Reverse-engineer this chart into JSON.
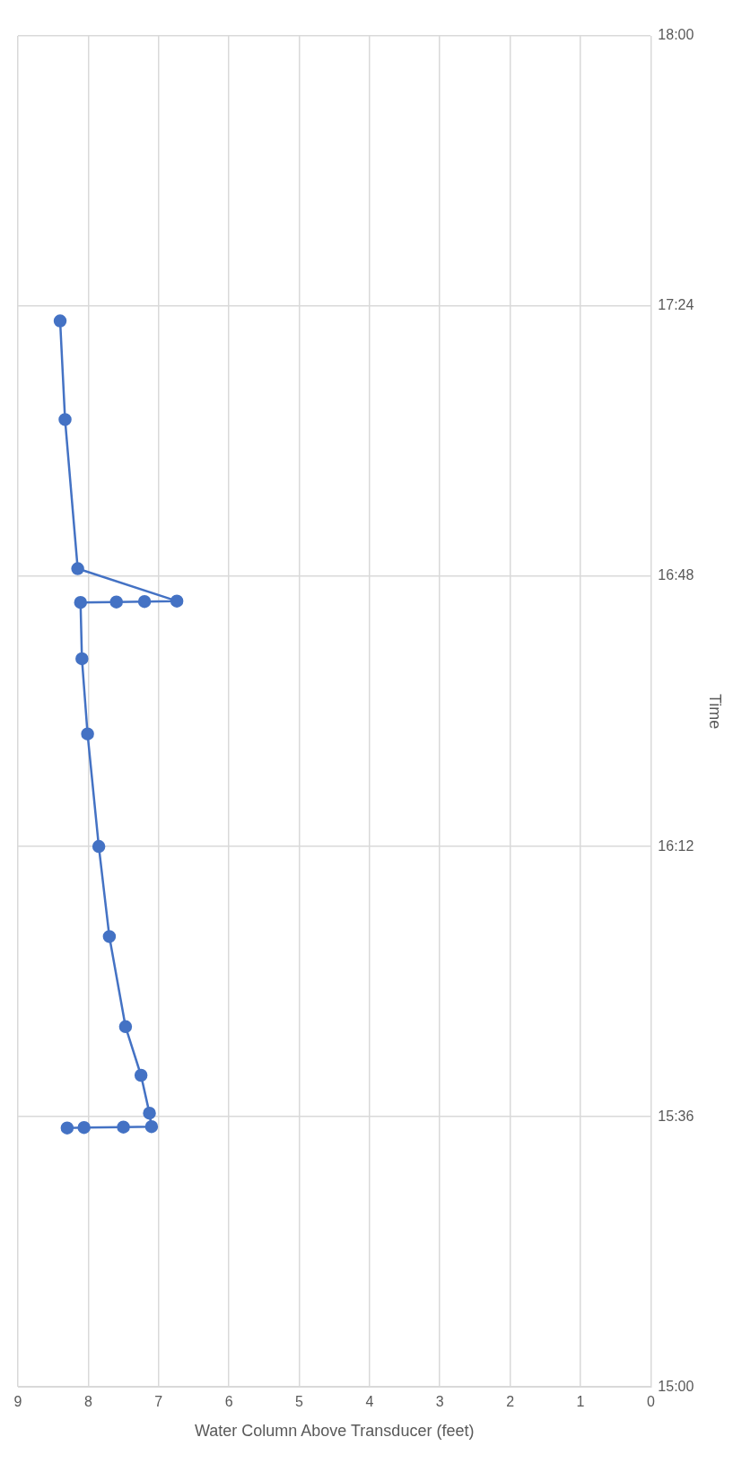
{
  "chart_data": {
    "type": "line",
    "xlabel": "Water Column Above Transducer (feet)",
    "ylabel": "Time",
    "series": [
      {
        "color": "#4472c4",
        "x": [
          8.3,
          8.06,
          7.5,
          7.1,
          7.13,
          7.25,
          7.47,
          7.7,
          7.85,
          8.01,
          8.09,
          8.11,
          7.6,
          7.2,
          6.74,
          8.15,
          8.33,
          8.4
        ],
        "values": [
          15.575,
          15.576,
          15.577,
          15.578,
          15.608,
          15.692,
          15.8,
          16.0,
          16.2,
          16.45,
          16.617,
          16.742,
          16.743,
          16.744,
          16.745,
          16.817,
          17.148,
          17.367
        ]
      }
    ],
    "ylim": [
      15,
      18
    ],
    "yticks": [
      {
        "value": 15,
        "label": "15:00"
      },
      {
        "value": 15.6,
        "label": "15:36"
      },
      {
        "value": 16.2,
        "label": "16:12"
      },
      {
        "value": 16.8,
        "label": "16:48"
      },
      {
        "value": 17.4,
        "label": "17:24"
      },
      {
        "value": 18,
        "label": "18:00"
      }
    ],
    "xlim": [
      9,
      0
    ],
    "xticks": [
      9,
      8,
      7,
      6,
      5,
      4,
      3,
      2,
      1,
      0
    ],
    "grid": true,
    "marker": "circle",
    "line_style": "solid"
  }
}
